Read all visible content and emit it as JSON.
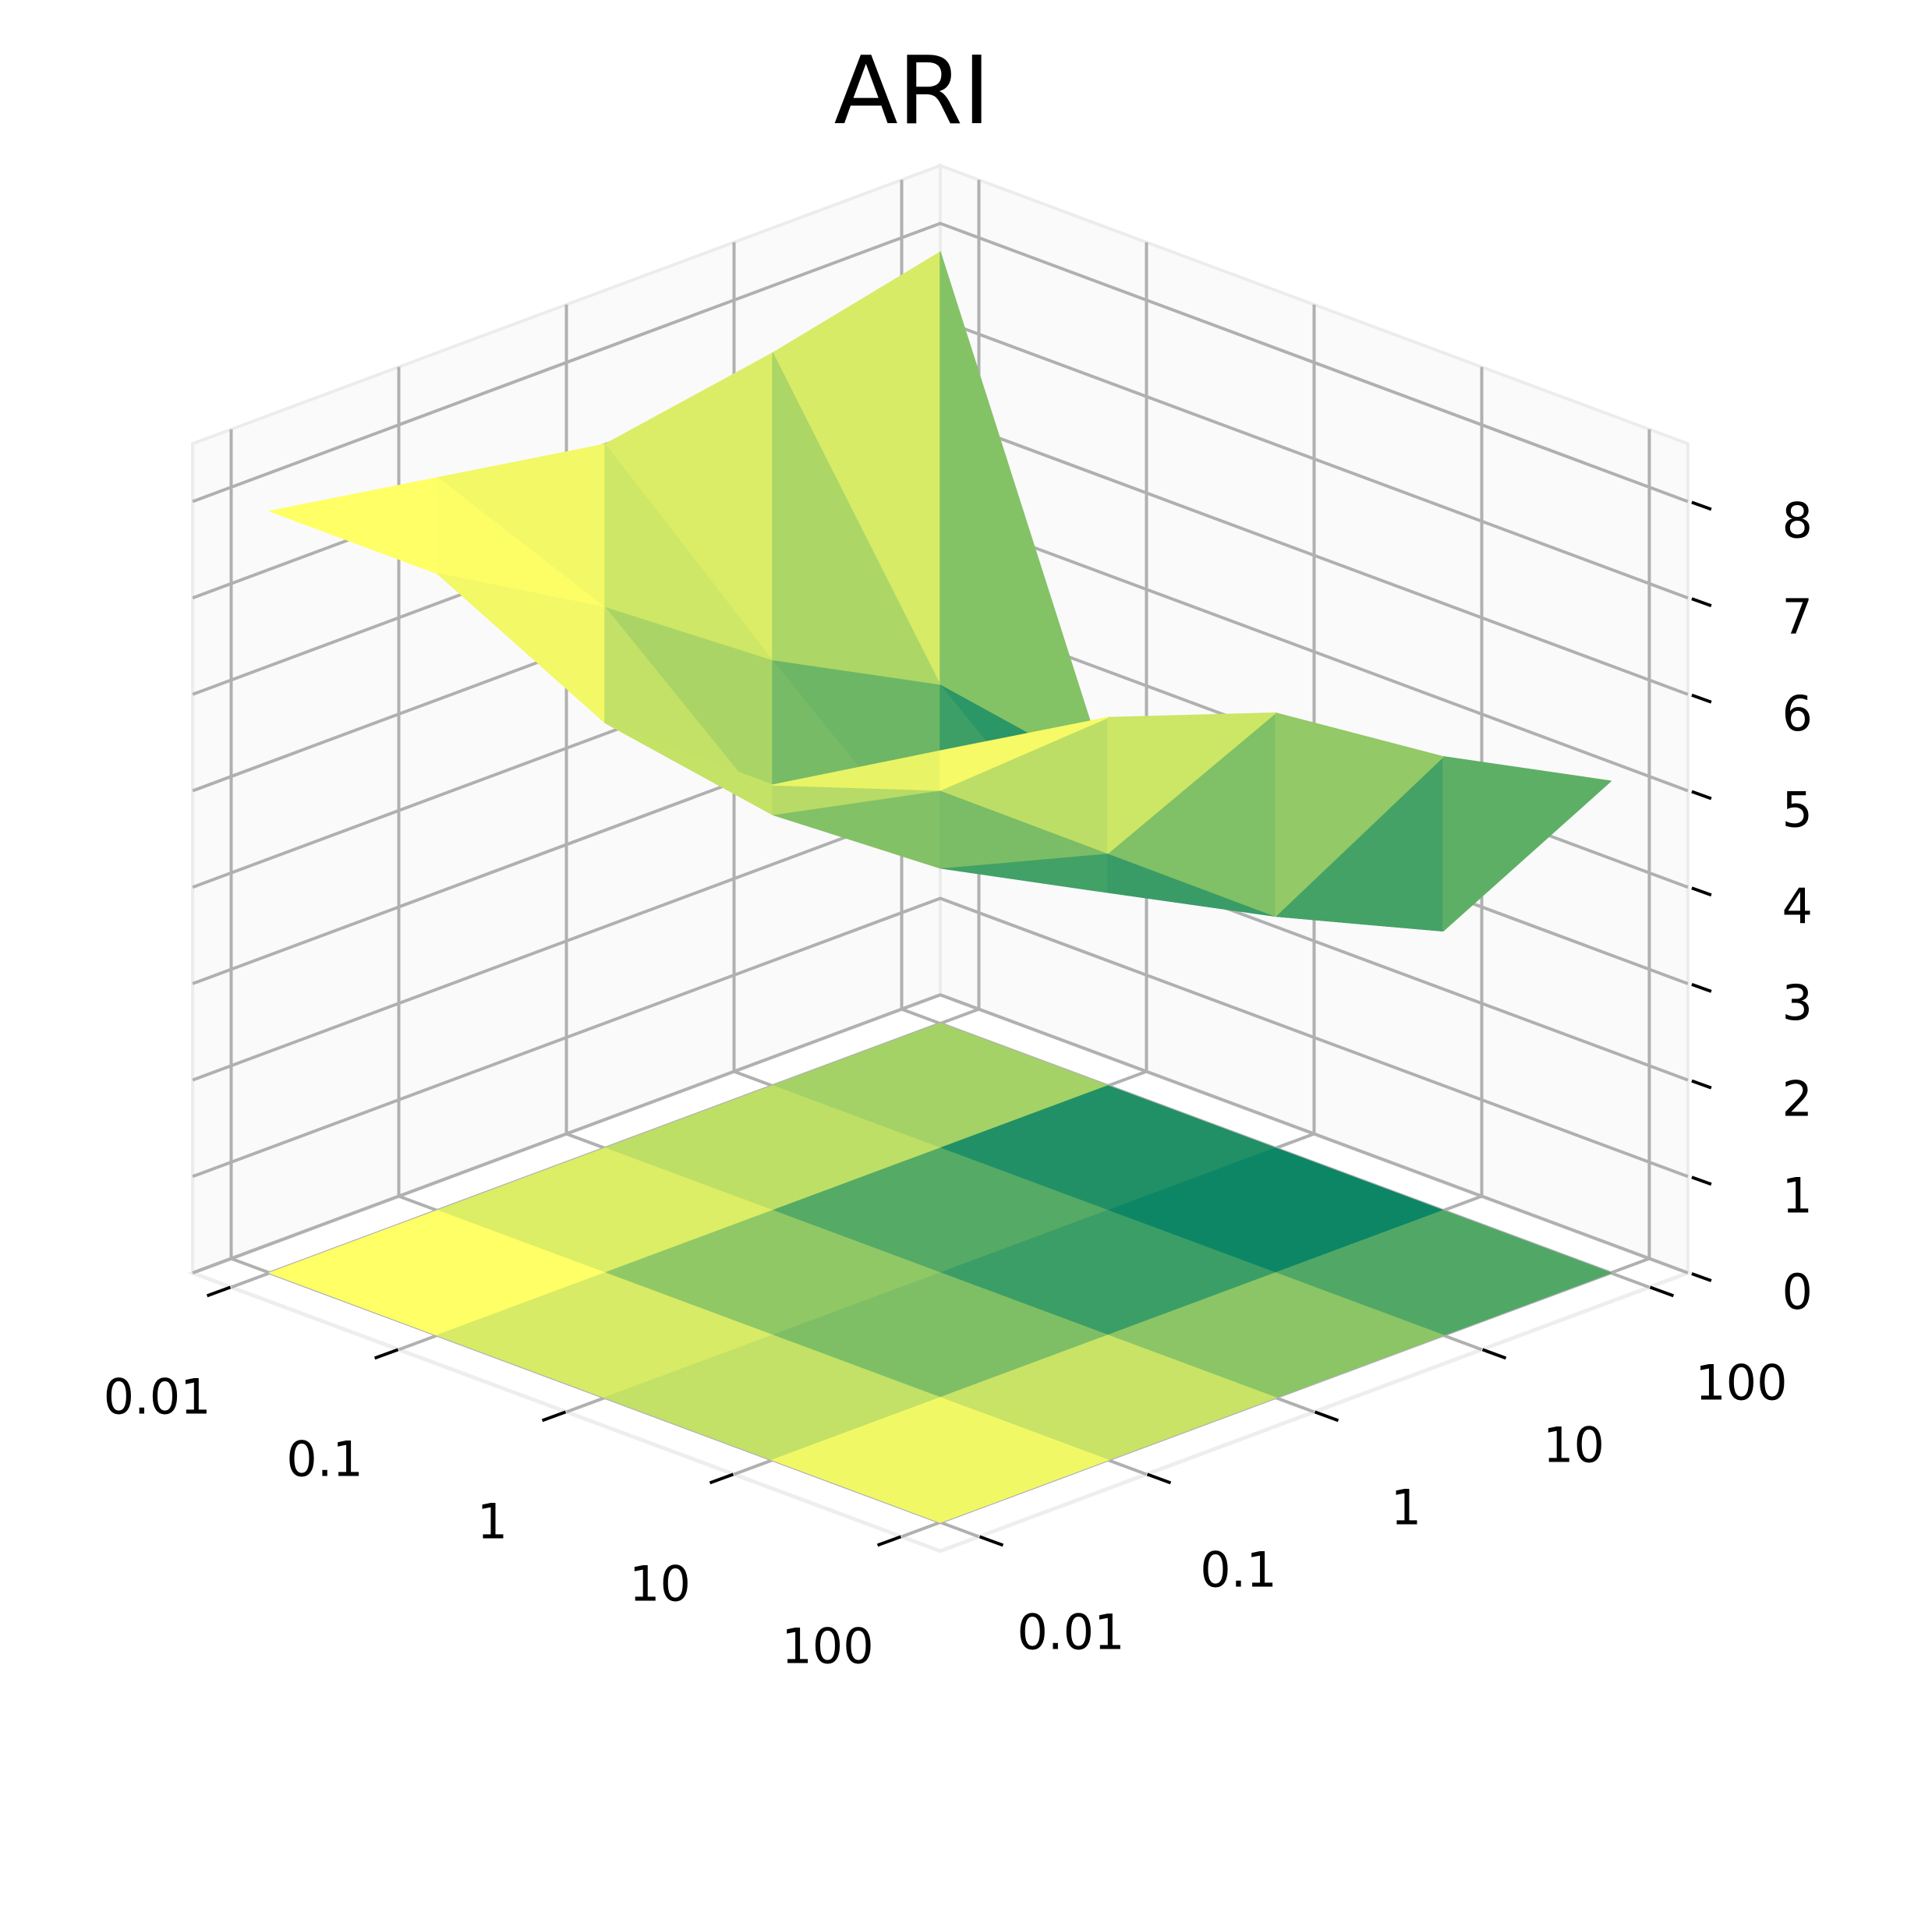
{
  "chart_data": {
    "type": "surface3d",
    "title": "ARI",
    "x_ticks": [
      "0.01",
      "0.1",
      "1",
      "10",
      "100"
    ],
    "y_ticks": [
      "0.01",
      "0.1",
      "1",
      "10",
      "100"
    ],
    "z_ticks": [
      "0",
      "1",
      "2",
      "3",
      "4",
      "5",
      "6",
      "7",
      "8"
    ],
    "zlim": [
      0,
      8
    ],
    "xlabel": "",
    "ylabel": "",
    "zlabel": "",
    "x": [
      0.01,
      0.1,
      1,
      10,
      100
    ],
    "y": [
      0.01,
      0.1,
      1,
      10,
      100
    ],
    "z": [
      [
        8.0,
        7.7,
        7.1,
        6.0,
        5.1
      ],
      [
        7.0,
        6.3,
        5.0,
        3.7,
        2.9
      ],
      [
        7.0,
        5.4,
        4.2,
        3.3,
        3.0
      ],
      [
        7.9,
        6.9,
        5.7,
        4.8,
        3.2
      ],
      [
        7.9,
        7.6,
        7.3,
        7.6,
        8.0
      ]
    ],
    "colormap": "summer",
    "colormap_stops": [
      "#008066",
      "#ffff66"
    ],
    "floor_projection": "filled contour at z=0",
    "grid": true,
    "pane_grid_color": "#b0b0b0"
  }
}
